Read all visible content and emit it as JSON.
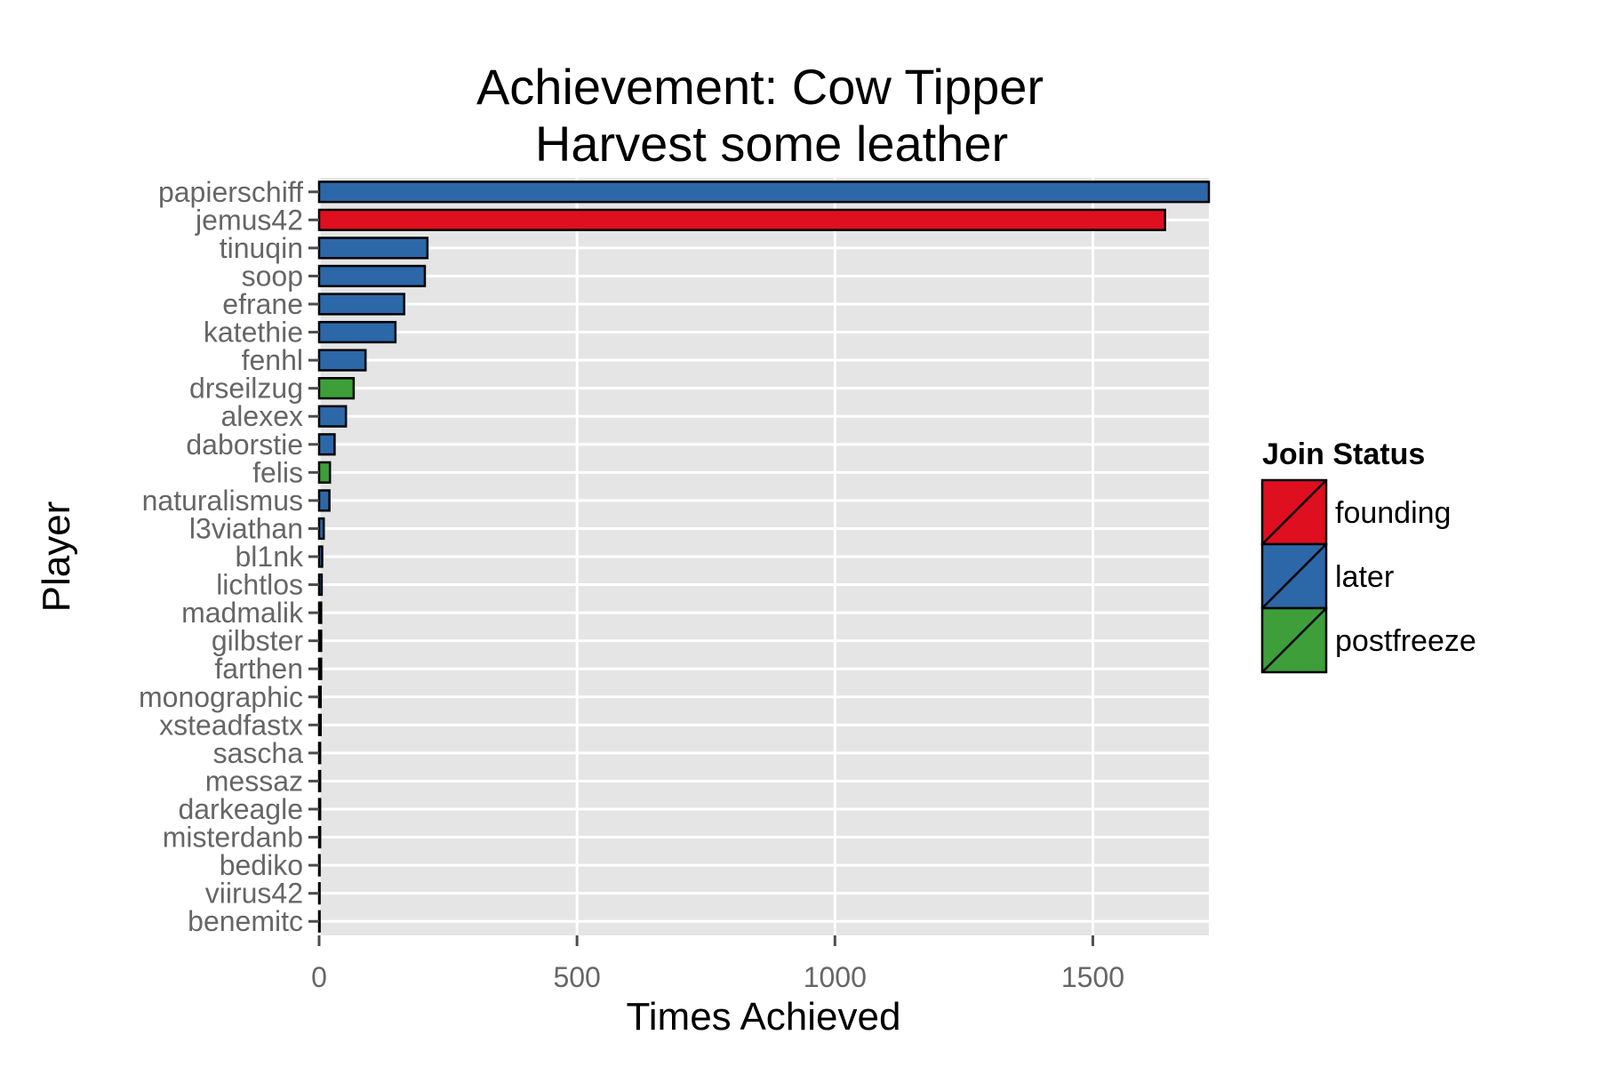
{
  "chart_data": {
    "type": "bar",
    "orientation": "horizontal",
    "title_line1": "Achievement: Cow Tipper",
    "title_line2": "Harvest some leather",
    "xlabel": "Times Achieved",
    "ylabel": "Player",
    "xlim": [
      0,
      1725
    ],
    "xticks": [
      0,
      500,
      1000,
      1500
    ],
    "grid": true,
    "legend": {
      "title": "Join Status",
      "placement": "right",
      "entries": [
        {
          "name": "founding",
          "color": "#de0f1f"
        },
        {
          "name": "later",
          "color": "#2c67a8"
        },
        {
          "name": "postfreeze",
          "color": "#3d9e3a"
        }
      ]
    },
    "bars": [
      {
        "player": "papierschiff",
        "value": 1725,
        "status": "later"
      },
      {
        "player": "jemus42",
        "value": 1640,
        "status": "founding"
      },
      {
        "player": "tinuqin",
        "value": 210,
        "status": "later"
      },
      {
        "player": "soop",
        "value": 205,
        "status": "later"
      },
      {
        "player": "efrane",
        "value": 165,
        "status": "later"
      },
      {
        "player": "katethie",
        "value": 148,
        "status": "later"
      },
      {
        "player": "fenhl",
        "value": 90,
        "status": "later"
      },
      {
        "player": "drseilzug",
        "value": 67,
        "status": "postfreeze"
      },
      {
        "player": "alexex",
        "value": 52,
        "status": "later"
      },
      {
        "player": "daborstie",
        "value": 30,
        "status": "later"
      },
      {
        "player": "felis",
        "value": 21,
        "status": "postfreeze"
      },
      {
        "player": "naturalismus",
        "value": 20,
        "status": "later"
      },
      {
        "player": "l3viathan",
        "value": 9,
        "status": "later"
      },
      {
        "player": "bl1nk",
        "value": 6,
        "status": "later"
      },
      {
        "player": "lichtlos",
        "value": 5,
        "status": "later"
      },
      {
        "player": "madmalik",
        "value": 4,
        "status": "later"
      },
      {
        "player": "gilbster",
        "value": 4,
        "status": "later"
      },
      {
        "player": "farthen",
        "value": 4,
        "status": "later"
      },
      {
        "player": "monographic",
        "value": 3,
        "status": "later"
      },
      {
        "player": "xsteadfastx",
        "value": 3,
        "status": "later"
      },
      {
        "player": "sascha",
        "value": 2,
        "status": "later"
      },
      {
        "player": "messaz",
        "value": 2,
        "status": "later"
      },
      {
        "player": "darkeagle",
        "value": 2,
        "status": "later"
      },
      {
        "player": "misterdanb",
        "value": 2,
        "status": "later"
      },
      {
        "player": "bediko",
        "value": 1,
        "status": "later"
      },
      {
        "player": "viirus42",
        "value": 1,
        "status": "later"
      },
      {
        "player": "benemitc",
        "value": 1,
        "status": "later"
      }
    ]
  }
}
